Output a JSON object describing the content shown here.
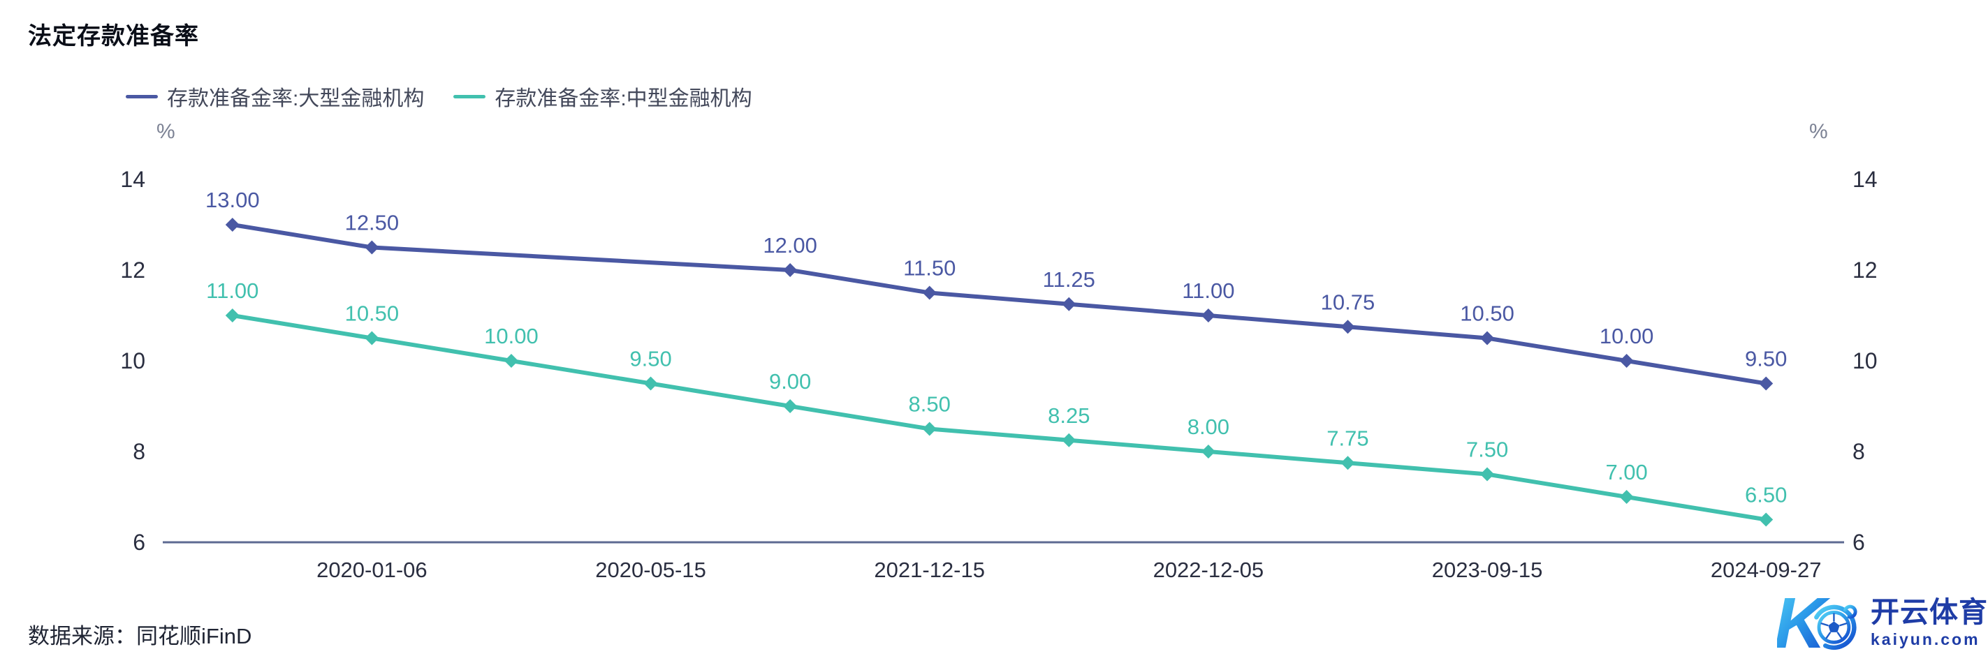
{
  "header": {
    "title": "法定存款准备率"
  },
  "legend": {
    "items": [
      {
        "label": "存款准备金率:大型金融机构",
        "color": "#4a58a3"
      },
      {
        "label": "存款准备金率:中型金融机构",
        "color": "#41c0ae"
      }
    ]
  },
  "axes": {
    "left_unit": "%",
    "right_unit": "%"
  },
  "chart_data": {
    "type": "line",
    "title": "法定存款准备率",
    "x_slot_count": 12,
    "x_tick_labels": [
      {
        "index": 1,
        "label": "2020-01-06"
      },
      {
        "index": 3,
        "label": "2020-05-15"
      },
      {
        "index": 5,
        "label": "2021-12-15"
      },
      {
        "index": 7,
        "label": "2022-12-05"
      },
      {
        "index": 9,
        "label": "2023-09-15"
      },
      {
        "index": 11,
        "label": "2024-09-27"
      }
    ],
    "ylim": [
      6,
      14
    ],
    "yticks": [
      6,
      8,
      10,
      12,
      14
    ],
    "y_unit": "%",
    "grid": false,
    "dual_axis": true,
    "legend_position": "top-left",
    "marker": "diamond",
    "series": [
      {
        "name": "存款准备金率:大型金融机构",
        "color": "#4a58a3",
        "points": [
          {
            "x_index": 0,
            "value": 13.0,
            "label": "13.00"
          },
          {
            "x_index": 1,
            "value": 12.5,
            "label": "12.50"
          },
          {
            "x_index": 4,
            "value": 12.0,
            "label": "12.00"
          },
          {
            "x_index": 5,
            "value": 11.5,
            "label": "11.50"
          },
          {
            "x_index": 6,
            "value": 11.25,
            "label": "11.25"
          },
          {
            "x_index": 7,
            "value": 11.0,
            "label": "11.00"
          },
          {
            "x_index": 8,
            "value": 10.75,
            "label": "10.75"
          },
          {
            "x_index": 9,
            "value": 10.5,
            "label": "10.50"
          },
          {
            "x_index": 10,
            "value": 10.0,
            "label": "10.00"
          },
          {
            "x_index": 11,
            "value": 9.5,
            "label": "9.50"
          }
        ]
      },
      {
        "name": "存款准备金率:中型金融机构",
        "color": "#41c0ae",
        "points": [
          {
            "x_index": 0,
            "value": 11.0,
            "label": "11.00"
          },
          {
            "x_index": 1,
            "value": 10.5,
            "label": "10.50"
          },
          {
            "x_index": 2,
            "value": 10.0,
            "label": "10.00"
          },
          {
            "x_index": 3,
            "value": 9.5,
            "label": "9.50"
          },
          {
            "x_index": 4,
            "value": 9.0,
            "label": "9.00"
          },
          {
            "x_index": 5,
            "value": 8.5,
            "label": "8.50"
          },
          {
            "x_index": 6,
            "value": 8.25,
            "label": "8.25"
          },
          {
            "x_index": 7,
            "value": 8.0,
            "label": "8.00"
          },
          {
            "x_index": 8,
            "value": 7.75,
            "label": "7.75"
          },
          {
            "x_index": 9,
            "value": 7.5,
            "label": "7.50"
          },
          {
            "x_index": 10,
            "value": 7.0,
            "label": "7.00"
          },
          {
            "x_index": 11,
            "value": 6.5,
            "label": "6.50"
          }
        ]
      }
    ]
  },
  "footer": {
    "source": "数据来源：同花顺iFinD"
  },
  "watermark": {
    "brand": "开云体育",
    "domain": "kaiyun.com"
  }
}
